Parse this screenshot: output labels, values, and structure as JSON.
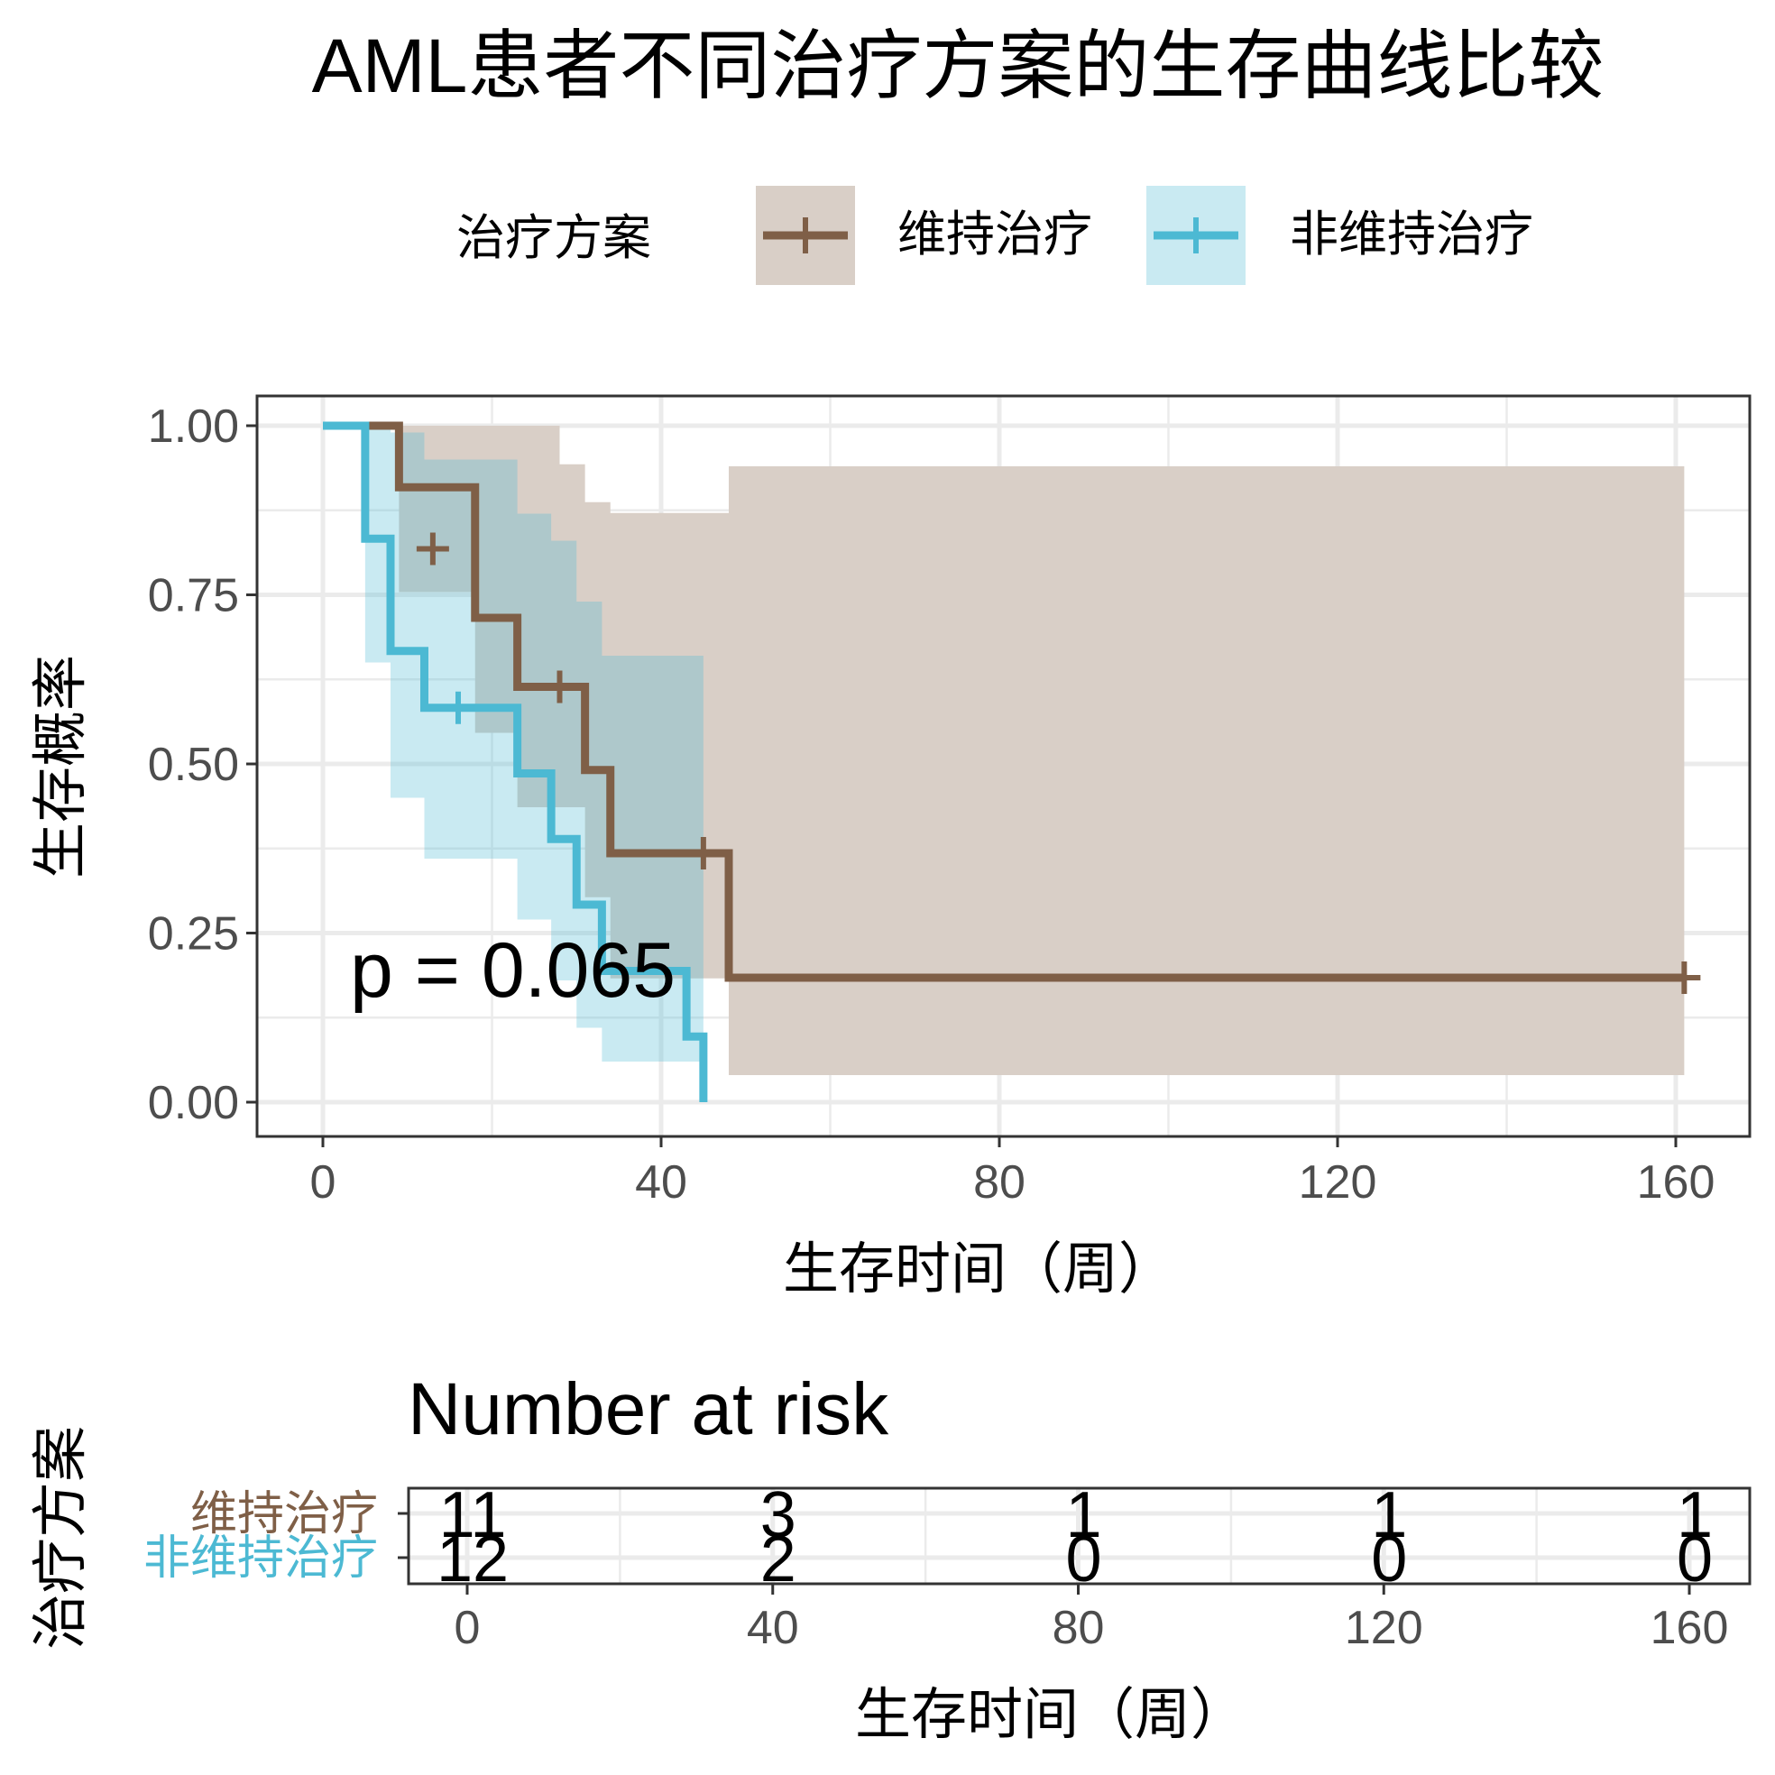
{
  "colors": {
    "maintenance": "#7F5F47",
    "non_maintenance": "#4CB9D3",
    "maintenance_ci": "#D9CFC7",
    "non_maintenance_ci": "#C9E9F1"
  },
  "chart_data": {
    "type": "line",
    "subtype": "kaplan-meier",
    "title": "AML患者不同治疗方案的生存曲线比较",
    "xlabel": "生存时间（周）",
    "ylabel": "生存概率",
    "xlim": [
      -8,
      168
    ],
    "ylim": [
      -0.05,
      1.05
    ],
    "xticks": [
      0,
      40,
      80,
      120,
      160
    ],
    "xtick_labels": [
      "0",
      "40",
      "80",
      "120",
      "160"
    ],
    "yticks": [
      0,
      0.25,
      0.5,
      0.75,
      1
    ],
    "ytick_labels": [
      "0.00",
      "0.25",
      "0.50",
      "0.75",
      "1.00"
    ],
    "grid": true,
    "legend": {
      "title": "治疗方案",
      "position": "top",
      "entries": [
        "维持治疗",
        "非维持治疗"
      ]
    },
    "annotation": "p = 0.065",
    "series": [
      {
        "name": "维持治疗",
        "color_key": "maintenance",
        "steps": [
          [
            0,
            1.0
          ],
          [
            9,
            0.909
          ],
          [
            18,
            0.716
          ],
          [
            23,
            0.614
          ],
          [
            31,
            0.491
          ],
          [
            34,
            0.368
          ],
          [
            48,
            0.184
          ],
          [
            161,
            0.184
          ]
        ],
        "ci": [
          [
            0,
            1.0,
            1.0
          ],
          [
            9,
            0.754,
            1.0
          ],
          [
            13,
            0.754,
            1.0
          ],
          [
            18,
            0.546,
            1.0
          ],
          [
            23,
            0.436,
            1.0
          ],
          [
            28,
            0.436,
            0.943
          ],
          [
            31,
            0.303,
            0.887
          ],
          [
            34,
            0.183,
            0.871
          ],
          [
            48,
            0.04,
            0.94
          ],
          [
            161,
            0.04,
            0.94
          ]
        ],
        "censor": [
          [
            13,
            0.818
          ],
          [
            28,
            0.614
          ],
          [
            45,
            0.368
          ],
          [
            161,
            0.184
          ]
        ]
      },
      {
        "name": "非维持治疗",
        "color_key": "non_maintenance",
        "steps": [
          [
            0,
            1.0
          ],
          [
            5,
            0.833
          ],
          [
            8,
            0.667
          ],
          [
            12,
            0.583
          ],
          [
            23,
            0.486
          ],
          [
            27,
            0.389
          ],
          [
            30,
            0.292
          ],
          [
            33,
            0.194
          ],
          [
            43,
            0.097
          ],
          [
            45,
            0.0
          ]
        ],
        "ci": [
          [
            0,
            1.0,
            1.0
          ],
          [
            5,
            0.65,
            1.0
          ],
          [
            8,
            0.45,
            0.99
          ],
          [
            12,
            0.36,
            0.95
          ],
          [
            23,
            0.27,
            0.87
          ],
          [
            27,
            0.18,
            0.83
          ],
          [
            30,
            0.11,
            0.74
          ],
          [
            33,
            0.06,
            0.66
          ],
          [
            43,
            0.06,
            0.66
          ],
          [
            45,
            0.06,
            0.66
          ]
        ],
        "censor": [
          [
            16,
            0.583
          ]
        ]
      }
    ],
    "risk_table": {
      "title": "Number at risk",
      "xlabel": "生存时间（周）",
      "ylabel": "治疗方案",
      "time_points": [
        0,
        40,
        80,
        120,
        160
      ],
      "rows": [
        {
          "label": "维持治疗",
          "color_key": "maintenance",
          "values": [
            "11",
            "3",
            "1",
            "1",
            "1"
          ]
        },
        {
          "label": "非维持治疗",
          "color_key": "non_maintenance",
          "values": [
            "12",
            "2",
            "0",
            "0",
            "0"
          ]
        }
      ]
    }
  }
}
